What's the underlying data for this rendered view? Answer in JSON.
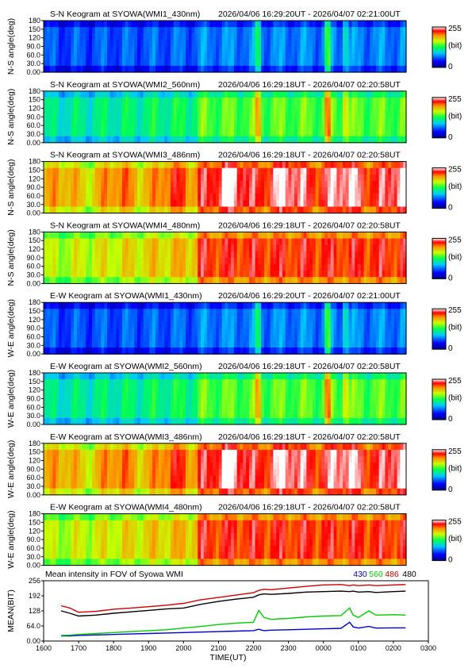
{
  "colorbar": {
    "max_label": "255",
    "unit_label": "(bit)",
    "min_label": "0"
  },
  "keograms": [
    {
      "title": "S-N Keogram at SYOWA(WMI1_430nm)",
      "time_range": "2026/04/06 16:29:20UT - 2026/04/07 02:21:00UT",
      "ylabel": "N-S angle(deg)",
      "ticks": [
        "0.00",
        "30.0",
        "60.0",
        "90.0",
        "120",
        "150",
        "180"
      ],
      "palette": "dim",
      "base": 0.22,
      "rise": 0.06
    },
    {
      "title": "S-N Keogram at SYOWA(WMI2_560nm)",
      "time_range": "2026/04/06 16:29:18UT - 2026/04/07 02:20:58UT",
      "ylabel": "N-S angle(deg)",
      "ticks": [
        "0.00",
        "30.0",
        "60.0",
        "90.0",
        "120",
        "150",
        "180"
      ],
      "palette": "green",
      "base": 0.42,
      "rise": 0.14
    },
    {
      "title": "S-N Keogram at SYOWA(WMI3_486nm)",
      "time_range": "2026/04/06 16:29:18UT - 2026/04/07 02:20:58UT",
      "ylabel": "N-S angle(deg)",
      "ticks": [
        "0.00",
        "30.0",
        "60.0",
        "90.0",
        "120",
        "150",
        "180"
      ],
      "palette": "hot",
      "base": 0.72,
      "rise": 0.22
    },
    {
      "title": "S-N Keogram at SYOWA(WMI4_480nm)",
      "time_range": "2026/04/06 16:29:18UT - 2026/04/07 02:20:58UT",
      "ylabel": "N-S angle(deg)",
      "ticks": [
        "0.00",
        "30.0",
        "60.0",
        "90.0",
        "120",
        "150",
        "180"
      ],
      "palette": "warm",
      "base": 0.62,
      "rise": 0.26
    },
    {
      "title": "E-W Keogram at SYOWA(WMI1_430nm)",
      "time_range": "2026/04/06 16:29:20UT - 2026/04/07 02:21:00UT",
      "ylabel": "W-E angle(deg)",
      "ticks": [
        "0.00",
        "30.0",
        "60.0",
        "90.0",
        "120",
        "150",
        "180"
      ],
      "palette": "dim",
      "base": 0.22,
      "rise": 0.06
    },
    {
      "title": "E-W Keogram at SYOWA(WMI2_560nm)",
      "time_range": "2026/04/06 16:29:18UT - 2026/04/07 02:20:58UT",
      "ylabel": "W-E angle(deg)",
      "ticks": [
        "0.00",
        "30.0",
        "60.0",
        "90.0",
        "120",
        "150",
        "180"
      ],
      "palette": "green",
      "base": 0.42,
      "rise": 0.14
    },
    {
      "title": "E-W Keogram at SYOWA(WMI3_486nm)",
      "time_range": "2026/04/06 16:29:18UT - 2026/04/07 02:20:58UT",
      "ylabel": "W-E angle(deg)",
      "ticks": [
        "0.00",
        "30.0",
        "60.0",
        "90.0",
        "120",
        "150",
        "180"
      ],
      "palette": "hot",
      "base": 0.72,
      "rise": 0.22
    },
    {
      "title": "E-W Keogram at SYOWA(WMI4_480nm)",
      "time_range": "2026/04/06 16:29:18UT - 2026/04/07 02:20:58UT",
      "ylabel": "W-E angle(deg)",
      "ticks": [
        "0.00",
        "30.0",
        "60.0",
        "90.0",
        "120",
        "150",
        "180"
      ],
      "palette": "warm",
      "base": 0.62,
      "rise": 0.26
    }
  ],
  "chart_data": {
    "type": "line",
    "title": "Mean intensity in FOV of Syowa WMI",
    "xlabel": "TIME(UT)",
    "ylabel": "MEAN(BIT)",
    "x_ticks": [
      "1600",
      "1700",
      "1800",
      "1900",
      "2000",
      "2100",
      "2200",
      "2300",
      "0000",
      "0100",
      "0200",
      "0300"
    ],
    "y_ticks": [
      "0.00",
      "64.0",
      "128",
      "192",
      "256"
    ],
    "xlim": [
      16.0,
      27.0
    ],
    "ylim": [
      0,
      256
    ],
    "x": [
      16.5,
      16.75,
      17.0,
      17.5,
      18.0,
      18.5,
      19.0,
      19.5,
      20.0,
      20.5,
      21.0,
      21.5,
      22.0,
      22.15,
      22.3,
      22.5,
      23.0,
      23.5,
      24.0,
      24.5,
      24.75,
      24.85,
      25.0,
      25.3,
      25.5,
      26.0,
      26.35
    ],
    "series": [
      {
        "name": "430",
        "color": "#0000cc",
        "values": [
          22,
          22,
          24,
          26,
          28,
          30,
          32,
          34,
          36,
          38,
          40,
          42,
          44,
          50,
          44,
          46,
          48,
          50,
          52,
          54,
          80,
          60,
          55,
          62,
          55,
          56,
          56
        ]
      },
      {
        "name": "560",
        "color": "#00cc00",
        "values": [
          24,
          25,
          28,
          32,
          36,
          40,
          44,
          48,
          55,
          62,
          70,
          76,
          80,
          130,
          100,
          92,
          96,
          102,
          106,
          108,
          140,
          110,
          100,
          128,
          110,
          112,
          110
        ]
      },
      {
        "name": "486",
        "color": "#cc0000",
        "values": [
          150,
          140,
          122,
          126,
          135,
          140,
          146,
          152,
          160,
          175,
          185,
          195,
          205,
          215,
          220,
          218,
          225,
          232,
          238,
          240,
          235,
          238,
          235,
          238,
          235,
          238,
          240
        ]
      },
      {
        "name": "480",
        "color": "#000000",
        "values": [
          128,
          118,
          106,
          110,
          118,
          124,
          130,
          136,
          140,
          156,
          168,
          178,
          186,
          196,
          200,
          198,
          202,
          208,
          210,
          212,
          210,
          212,
          208,
          210,
          206,
          210,
          212
        ]
      }
    ]
  }
}
